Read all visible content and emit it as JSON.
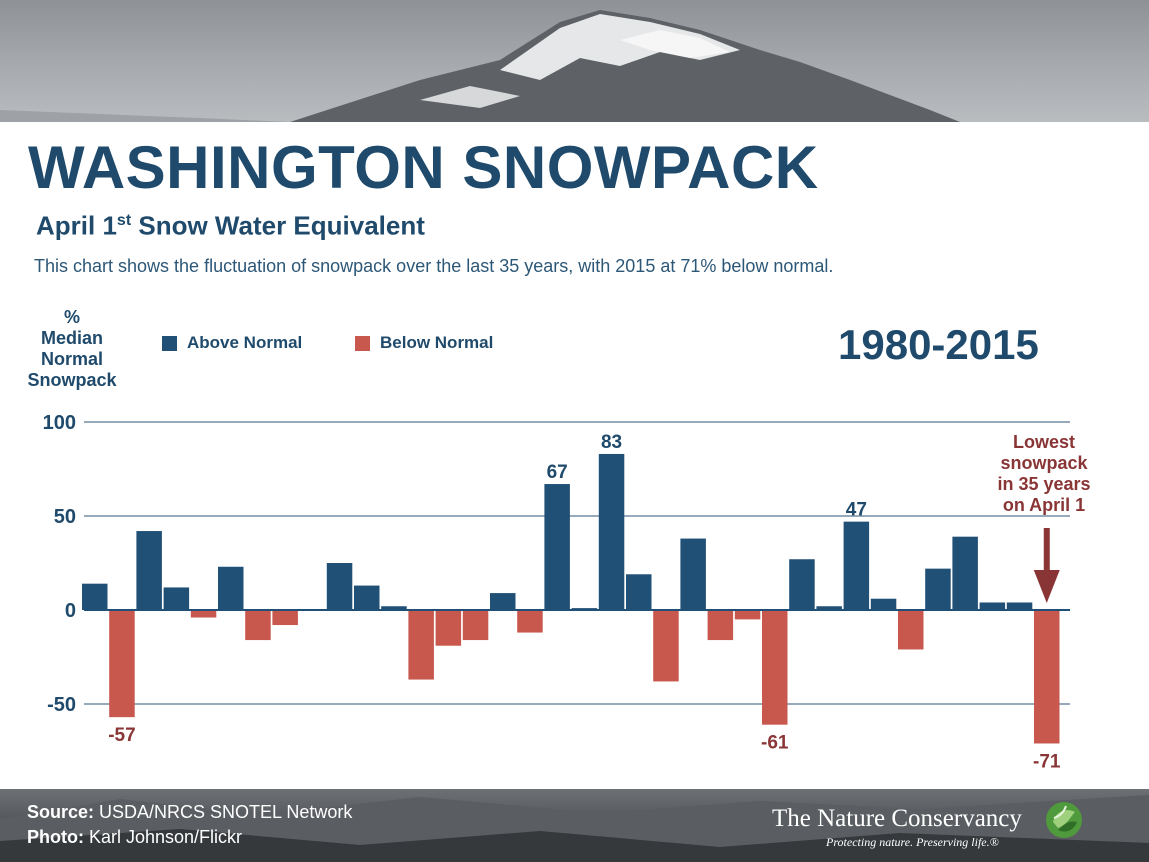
{
  "header": {
    "title": "WASHINGTON SNOWPACK",
    "subtitle_pre": "April 1",
    "subtitle_sup": "st",
    "subtitle_post": " Snow Water Equivalent",
    "description": "This chart shows the fluctuation of snowpack over the last 35 years, with 2015 at 71% below normal."
  },
  "chart_data": {
    "type": "bar",
    "title": "WASHINGTON SNOWPACK",
    "period_label": "1980-2015",
    "ylabel_lines": [
      "%",
      "Median",
      "Normal",
      "Snowpack"
    ],
    "xlabel": "",
    "ylim": [
      -75,
      100
    ],
    "yticks": [
      100,
      50,
      0,
      -50
    ],
    "grid": true,
    "legend": {
      "placement": "top",
      "above_label": "Above Normal",
      "below_label": "Below Normal"
    },
    "colors": {
      "above": "#215077",
      "below": "#c8584e",
      "label_above": "#1f4a6b",
      "label_below": "#8a3535",
      "grid": "#97aabb"
    },
    "values": [
      14,
      -57,
      42,
      12,
      -4,
      23,
      -16,
      -8,
      0,
      25,
      13,
      2,
      -37,
      -19,
      -16,
      9,
      -12,
      67,
      1,
      83,
      19,
      -38,
      38,
      -16,
      -5,
      -61,
      27,
      2,
      47,
      6,
      -21,
      22,
      39,
      4,
      4,
      -71
    ],
    "data_labels": [
      {
        "index": 1,
        "text": "-57"
      },
      {
        "index": 17,
        "text": "67"
      },
      {
        "index": 19,
        "text": "83"
      },
      {
        "index": 25,
        "text": "-61"
      },
      {
        "index": 28,
        "text": "47"
      },
      {
        "index": 35,
        "text": "-71"
      }
    ],
    "annotation": {
      "lines": [
        "Lowest",
        "snowpack",
        "in 35 years",
        "on April 1"
      ],
      "target_index": 35
    }
  },
  "footer": {
    "source_label": "Source:",
    "source_value": " USDA/NRCS SNOTEL Network",
    "photo_label": "Photo:",
    "photo_value": " Karl Johnson/Flickr"
  },
  "branding": {
    "name": "The Nature Conservancy",
    "tagline": "Protecting nature. Preserving life.",
    "tagline_mark": "®"
  }
}
